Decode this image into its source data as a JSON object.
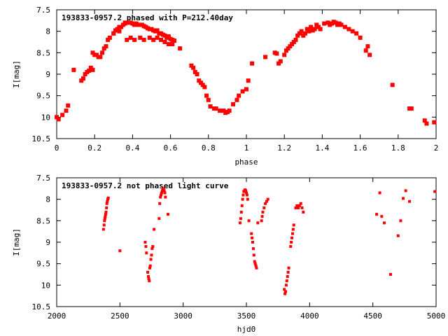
{
  "chart_data": [
    {
      "type": "scatter",
      "title": "193833-0957.2 phased with P=212.40day",
      "xlabel": "phase",
      "ylabel": "I[mag]",
      "xlim": [
        0,
        2
      ],
      "ylim": [
        10.5,
        7.5
      ],
      "y_inverted": true,
      "xticks": [
        "0",
        "0.2",
        "0.4",
        "0.6",
        "0.8",
        "1",
        "1.2",
        "1.4",
        "1.6",
        "1.8",
        "2"
      ],
      "yticks": [
        "7.5",
        "8",
        "8.5",
        "9",
        "9.5",
        "10",
        "10.5"
      ],
      "marker_color": "#ff0000",
      "series": [
        {
          "x": [
            0.0,
            0.01,
            0.03,
            0.05,
            0.06,
            0.09,
            0.13,
            0.14,
            0.15,
            0.16,
            0.17,
            0.18,
            0.19,
            0.19,
            0.2,
            0.21,
            0.22,
            0.23,
            0.24,
            0.25,
            0.26,
            0.27,
            0.28,
            0.3,
            0.3,
            0.31,
            0.32,
            0.33,
            0.33,
            0.34,
            0.35,
            0.36,
            0.36,
            0.37,
            0.38,
            0.39,
            0.4,
            0.41,
            0.42,
            0.43,
            0.44,
            0.45,
            0.46,
            0.47,
            0.48,
            0.49,
            0.5,
            0.51,
            0.52,
            0.53,
            0.54,
            0.55,
            0.56,
            0.57,
            0.58,
            0.59,
            0.6,
            0.61,
            0.62,
            0.37,
            0.39,
            0.41,
            0.44,
            0.46,
            0.49,
            0.51,
            0.53,
            0.55,
            0.57,
            0.59,
            0.61,
            0.65,
            0.71,
            0.72,
            0.73,
            0.74,
            0.75,
            0.76,
            0.77,
            0.78,
            0.79,
            0.8,
            0.81,
            0.83,
            0.84,
            0.86,
            0.88,
            0.89,
            0.9,
            0.91,
            0.93,
            0.95,
            0.96,
            0.98,
            1.0,
            1.01,
            1.03,
            1.1,
            1.15,
            1.16,
            1.17,
            1.18,
            1.2,
            1.21,
            1.22,
            1.23,
            1.24,
            1.25,
            1.26,
            1.27,
            1.28,
            1.29,
            1.3,
            1.31,
            1.32,
            1.33,
            1.34,
            1.35,
            1.36,
            1.37,
            1.38,
            1.39,
            1.41,
            1.43,
            1.44,
            1.45,
            1.46,
            1.47,
            1.48,
            1.49,
            1.5,
            1.52,
            1.54,
            1.56,
            1.58,
            1.6,
            1.63,
            1.64,
            1.65,
            1.77,
            1.86,
            1.87,
            1.94,
            1.95,
            1.99
          ],
          "y": [
            10.0,
            10.05,
            9.95,
            9.85,
            9.73,
            8.9,
            9.15,
            9.1,
            9.0,
            8.95,
            8.92,
            8.85,
            8.9,
            8.5,
            8.55,
            8.55,
            8.6,
            8.6,
            8.5,
            8.4,
            8.35,
            8.2,
            8.15,
            8.05,
            8.05,
            7.98,
            7.95,
            7.9,
            8.0,
            7.9,
            7.85,
            7.82,
            7.8,
            7.8,
            7.8,
            7.8,
            7.82,
            7.85,
            7.82,
            7.85,
            7.85,
            7.85,
            7.88,
            7.9,
            7.93,
            7.95,
            7.95,
            7.98,
            8.0,
            7.98,
            8.05,
            8.05,
            8.08,
            8.1,
            8.15,
            8.12,
            8.18,
            8.2,
            8.22,
            8.2,
            8.15,
            8.2,
            8.15,
            8.2,
            8.15,
            8.2,
            8.15,
            8.2,
            8.25,
            8.3,
            8.3,
            8.4,
            8.8,
            8.85,
            8.95,
            9.0,
            9.15,
            9.2,
            9.25,
            9.3,
            9.5,
            9.6,
            9.75,
            9.8,
            9.8,
            9.85,
            9.85,
            9.9,
            9.88,
            9.85,
            9.7,
            9.6,
            9.5,
            9.4,
            9.35,
            9.15,
            8.75,
            8.6,
            8.5,
            8.52,
            8.75,
            8.7,
            8.55,
            8.45,
            8.4,
            8.35,
            8.3,
            8.25,
            8.2,
            8.1,
            8.05,
            8.0,
            8.1,
            8.05,
            7.95,
            8.0,
            7.9,
            7.98,
            7.95,
            7.85,
            7.9,
            7.95,
            7.82,
            7.8,
            7.85,
            7.82,
            7.78,
            7.8,
            7.85,
            7.82,
            7.85,
            7.9,
            7.95,
            8.0,
            8.05,
            8.15,
            8.45,
            8.35,
            8.55,
            9.25,
            9.8,
            9.8,
            10.08,
            10.15,
            10.12
          ]
        }
      ]
    },
    {
      "type": "scatter",
      "title": "193833-0957.2 not phased light curve",
      "xlabel": "hjd0",
      "ylabel": "I[mag]",
      "xlim": [
        2000,
        5000
      ],
      "ylim": [
        10.5,
        7.5
      ],
      "y_inverted": true,
      "xticks": [
        "2000",
        "2500",
        "3000",
        "3500",
        "4000",
        "4500",
        "5000"
      ],
      "yticks": [
        "7.5",
        "8",
        "8.5",
        "9",
        "9.5",
        "10",
        "10.5"
      ],
      "marker_color": "#ff0000",
      "series": [
        {
          "x": [
            2370,
            2375,
            2378,
            2381,
            2384,
            2387,
            2390,
            2394,
            2397,
            2400,
            2404,
            2408,
            2500,
            2700,
            2705,
            2710,
            2720,
            2725,
            2728,
            2732,
            2736,
            2740,
            2745,
            2750,
            2755,
            2760,
            2770,
            2810,
            2815,
            2820,
            2825,
            2830,
            2835,
            2840,
            2845,
            2850,
            2855,
            2860,
            2880,
            3450,
            3455,
            3460,
            3465,
            3470,
            3475,
            3480,
            3485,
            3490,
            3495,
            3500,
            3505,
            3510,
            3520,
            3540,
            3545,
            3550,
            3555,
            3560,
            3565,
            3570,
            3575,
            3580,
            3590,
            3620,
            3625,
            3630,
            3640,
            3650,
            3660,
            3670,
            3800,
            3805,
            3810,
            3815,
            3820,
            3825,
            3830,
            3835,
            3850,
            3855,
            3860,
            3865,
            3870,
            3875,
            3890,
            3900,
            3910,
            3920,
            3930,
            3940,
            3950,
            4530,
            4555,
            4570,
            4590,
            4640,
            4700,
            4720,
            4740,
            4760,
            4790,
            4990
          ],
          "y": [
            8.7,
            8.6,
            8.5,
            8.45,
            8.4,
            8.35,
            8.3,
            8.2,
            8.1,
            8.05,
            8.0,
            7.97,
            9.2,
            9.0,
            9.1,
            9.25,
            9.7,
            9.8,
            9.85,
            9.9,
            9.6,
            9.55,
            9.4,
            9.3,
            9.15,
            9.1,
            8.7,
            8.45,
            8.1,
            7.95,
            7.9,
            7.85,
            7.8,
            7.78,
            7.75,
            7.8,
            7.85,
            7.95,
            8.35,
            8.55,
            8.45,
            8.3,
            8.15,
            8.0,
            7.9,
            7.82,
            7.8,
            7.78,
            7.8,
            7.85,
            7.9,
            8.0,
            8.5,
            8.8,
            8.9,
            9.0,
            9.15,
            9.3,
            9.45,
            9.5,
            9.55,
            9.6,
            8.55,
            8.5,
            8.4,
            8.3,
            8.2,
            8.1,
            8.05,
            8.0,
            10.1,
            10.2,
            10.15,
            10.0,
            9.9,
            9.8,
            9.7,
            9.6,
            9.1,
            9.0,
            8.9,
            8.8,
            8.7,
            8.6,
            8.2,
            8.15,
            8.2,
            8.15,
            8.1,
            8.2,
            8.3,
            8.35,
            7.85,
            8.4,
            8.55,
            9.75,
            8.85,
            8.5,
            7.98,
            7.8,
            8.05,
            7.82
          ]
        }
      ]
    }
  ]
}
